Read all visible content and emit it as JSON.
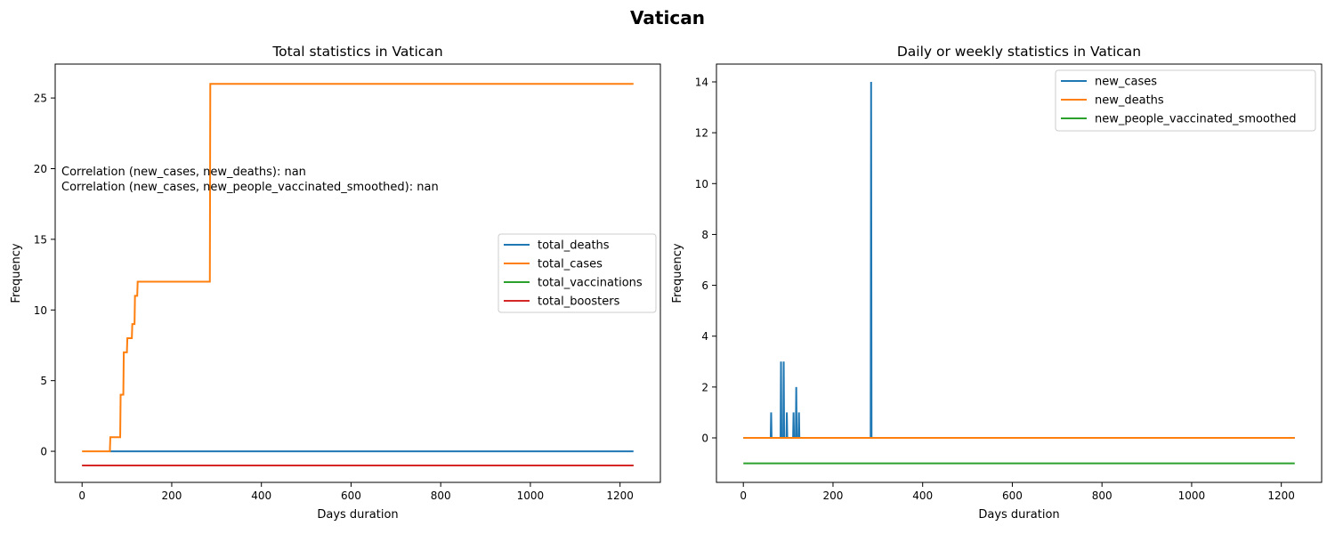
{
  "figure": {
    "suptitle": "Vatican"
  },
  "chart_data": [
    {
      "type": "line",
      "title": "Total statistics in Vatican",
      "xlabel": "Days duration",
      "ylabel": "Frequency",
      "xlim": [
        -60,
        1290
      ],
      "ylim": [
        -2.2,
        27.4
      ],
      "xticks": [
        0,
        200,
        400,
        600,
        800,
        1000,
        1200
      ],
      "yticks": [
        0,
        5,
        10,
        15,
        20,
        25
      ],
      "legend": "center-right",
      "annotations": [
        "Correlation (new_cases, new_deaths): nan",
        "Correlation (new_cases, new_people_vaccinated_smoothed): nan"
      ],
      "series": [
        {
          "name": "total_deaths",
          "color": "#1f77b4",
          "points": [
            [
              62,
              0
            ],
            [
              1230,
              0
            ]
          ]
        },
        {
          "name": "total_cases",
          "color": "#ff7f0e",
          "points": [
            [
              0,
              0
            ],
            [
              62,
              0
            ],
            [
              63,
              1
            ],
            [
              85,
              1
            ],
            [
              86,
              4
            ],
            [
              92,
              4
            ],
            [
              93,
              7
            ],
            [
              100,
              7
            ],
            [
              101,
              8
            ],
            [
              111,
              8
            ],
            [
              112,
              9
            ],
            [
              117,
              9
            ],
            [
              118,
              11
            ],
            [
              123,
              11
            ],
            [
              124,
              12
            ],
            [
              285,
              12
            ],
            [
              286,
              26
            ],
            [
              1230,
              26
            ]
          ]
        },
        {
          "name": "total_vaccinations",
          "color": "#2ca02c",
          "points": [
            [
              0,
              -1
            ],
            [
              1230,
              -1
            ]
          ]
        },
        {
          "name": "total_boosters",
          "color": "#d62728",
          "points": [
            [
              0,
              -1
            ],
            [
              1230,
              -1
            ]
          ]
        }
      ]
    },
    {
      "type": "line",
      "title": "Daily or weekly statistics in Vatican",
      "xlabel": "Days duration",
      "ylabel": "Frequency",
      "xlim": [
        -60,
        1290
      ],
      "ylim": [
        -1.75,
        14.7
      ],
      "xticks": [
        0,
        200,
        400,
        600,
        800,
        1000,
        1200
      ],
      "yticks": [
        0,
        2,
        4,
        6,
        8,
        10,
        12,
        14
      ],
      "legend": "top-right",
      "series": [
        {
          "name": "new_cases",
          "color": "#1f77b4",
          "points": [
            [
              0,
              0
            ],
            [
              61,
              0
            ],
            [
              62,
              1
            ],
            [
              63,
              0
            ],
            [
              83,
              0
            ],
            [
              84,
              3
            ],
            [
              85,
              0
            ],
            [
              89,
              0
            ],
            [
              90,
              3
            ],
            [
              91,
              0
            ],
            [
              96,
              0
            ],
            [
              97,
              1
            ],
            [
              98,
              0
            ],
            [
              111,
              0
            ],
            [
              112,
              1
            ],
            [
              113,
              0
            ],
            [
              117,
              0
            ],
            [
              118,
              2
            ],
            [
              119,
              0
            ],
            [
              123,
              0
            ],
            [
              124,
              1
            ],
            [
              125,
              0
            ],
            [
              284,
              0
            ],
            [
              285,
              14
            ],
            [
              286,
              0
            ],
            [
              1230,
              0
            ]
          ]
        },
        {
          "name": "new_deaths",
          "color": "#ff7f0e",
          "points": [
            [
              0,
              0
            ],
            [
              1230,
              0
            ]
          ]
        },
        {
          "name": "new_people_vaccinated_smoothed",
          "color": "#2ca02c",
          "points": [
            [
              0,
              -1
            ],
            [
              1230,
              -1
            ]
          ]
        }
      ]
    }
  ]
}
